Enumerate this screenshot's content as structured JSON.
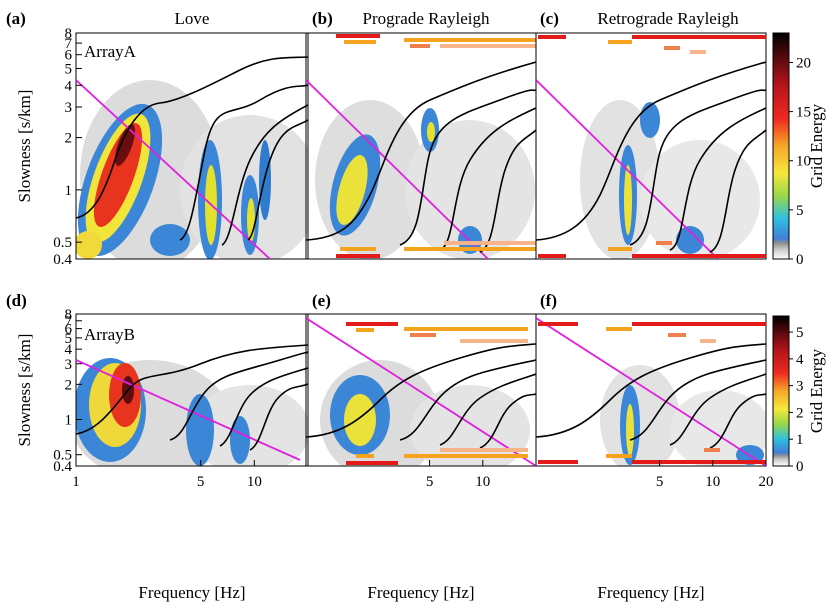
{
  "chart_data": [
    {
      "type": "heatmap",
      "panel": "(a)",
      "title": "Love",
      "inset_label": "ArrayA",
      "xlabel": "",
      "ylabel": "Slowness [s/km]",
      "xscale": "log",
      "yscale": "log",
      "xlim": [
        1,
        20
      ],
      "ylim": [
        0.4,
        8
      ],
      "y_ticks": [
        "0.4",
        "0.5",
        "1",
        "2",
        "3",
        "4",
        "5",
        "6",
        "7",
        "8"
      ],
      "colorbar": null
    },
    {
      "type": "heatmap",
      "panel": "(b)",
      "title": "Prograde Rayleigh",
      "xlabel": "",
      "xscale": "log",
      "yscale": "log",
      "xlim": [
        1,
        20
      ],
      "ylim": [
        0.4,
        8
      ]
    },
    {
      "type": "heatmap",
      "panel": "(c)",
      "title": "Retrograde Rayleigh",
      "xlabel": "",
      "xscale": "log",
      "yscale": "log",
      "xlim": [
        1,
        20
      ],
      "ylim": [
        0.4,
        8
      ],
      "colorbar": {
        "label": "Grid Energy",
        "range": [
          0,
          23
        ],
        "ticks": [
          "0",
          "5",
          "10",
          "15",
          "20"
        ]
      }
    },
    {
      "type": "heatmap",
      "panel": "(d)",
      "title": "",
      "inset_label": "ArrayB",
      "xlabel": "Frequency [Hz]",
      "ylabel": "Slowness [s/km]",
      "xscale": "log",
      "yscale": "log",
      "xlim": [
        1,
        20
      ],
      "ylim": [
        0.4,
        8
      ],
      "x_ticks": [
        "1",
        "5",
        "10"
      ],
      "y_ticks": [
        "0.4",
        "0.5",
        "1",
        "2",
        "3",
        "4",
        "5",
        "6",
        "7",
        "8"
      ]
    },
    {
      "type": "heatmap",
      "panel": "(e)",
      "title": "",
      "xlabel": "Frequency [Hz]",
      "xscale": "log",
      "yscale": "log",
      "xlim": [
        1,
        20
      ],
      "ylim": [
        0.4,
        8
      ],
      "x_ticks": [
        "5",
        "10"
      ]
    },
    {
      "type": "heatmap",
      "panel": "(f)",
      "title": "",
      "xlabel": "Frequency [Hz]",
      "xscale": "log",
      "yscale": "log",
      "xlim": [
        1,
        20
      ],
      "ylim": [
        0.4,
        8
      ],
      "x_ticks": [
        "5",
        "10",
        "20"
      ],
      "colorbar": {
        "label": "Grid Energy",
        "range": [
          0,
          5.6
        ],
        "ticks": [
          "0",
          "1",
          "2",
          "3",
          "4",
          "5"
        ]
      }
    }
  ],
  "colors": {
    "dispersion_curves": "#000000",
    "array_limit_line": "#e020e0"
  }
}
